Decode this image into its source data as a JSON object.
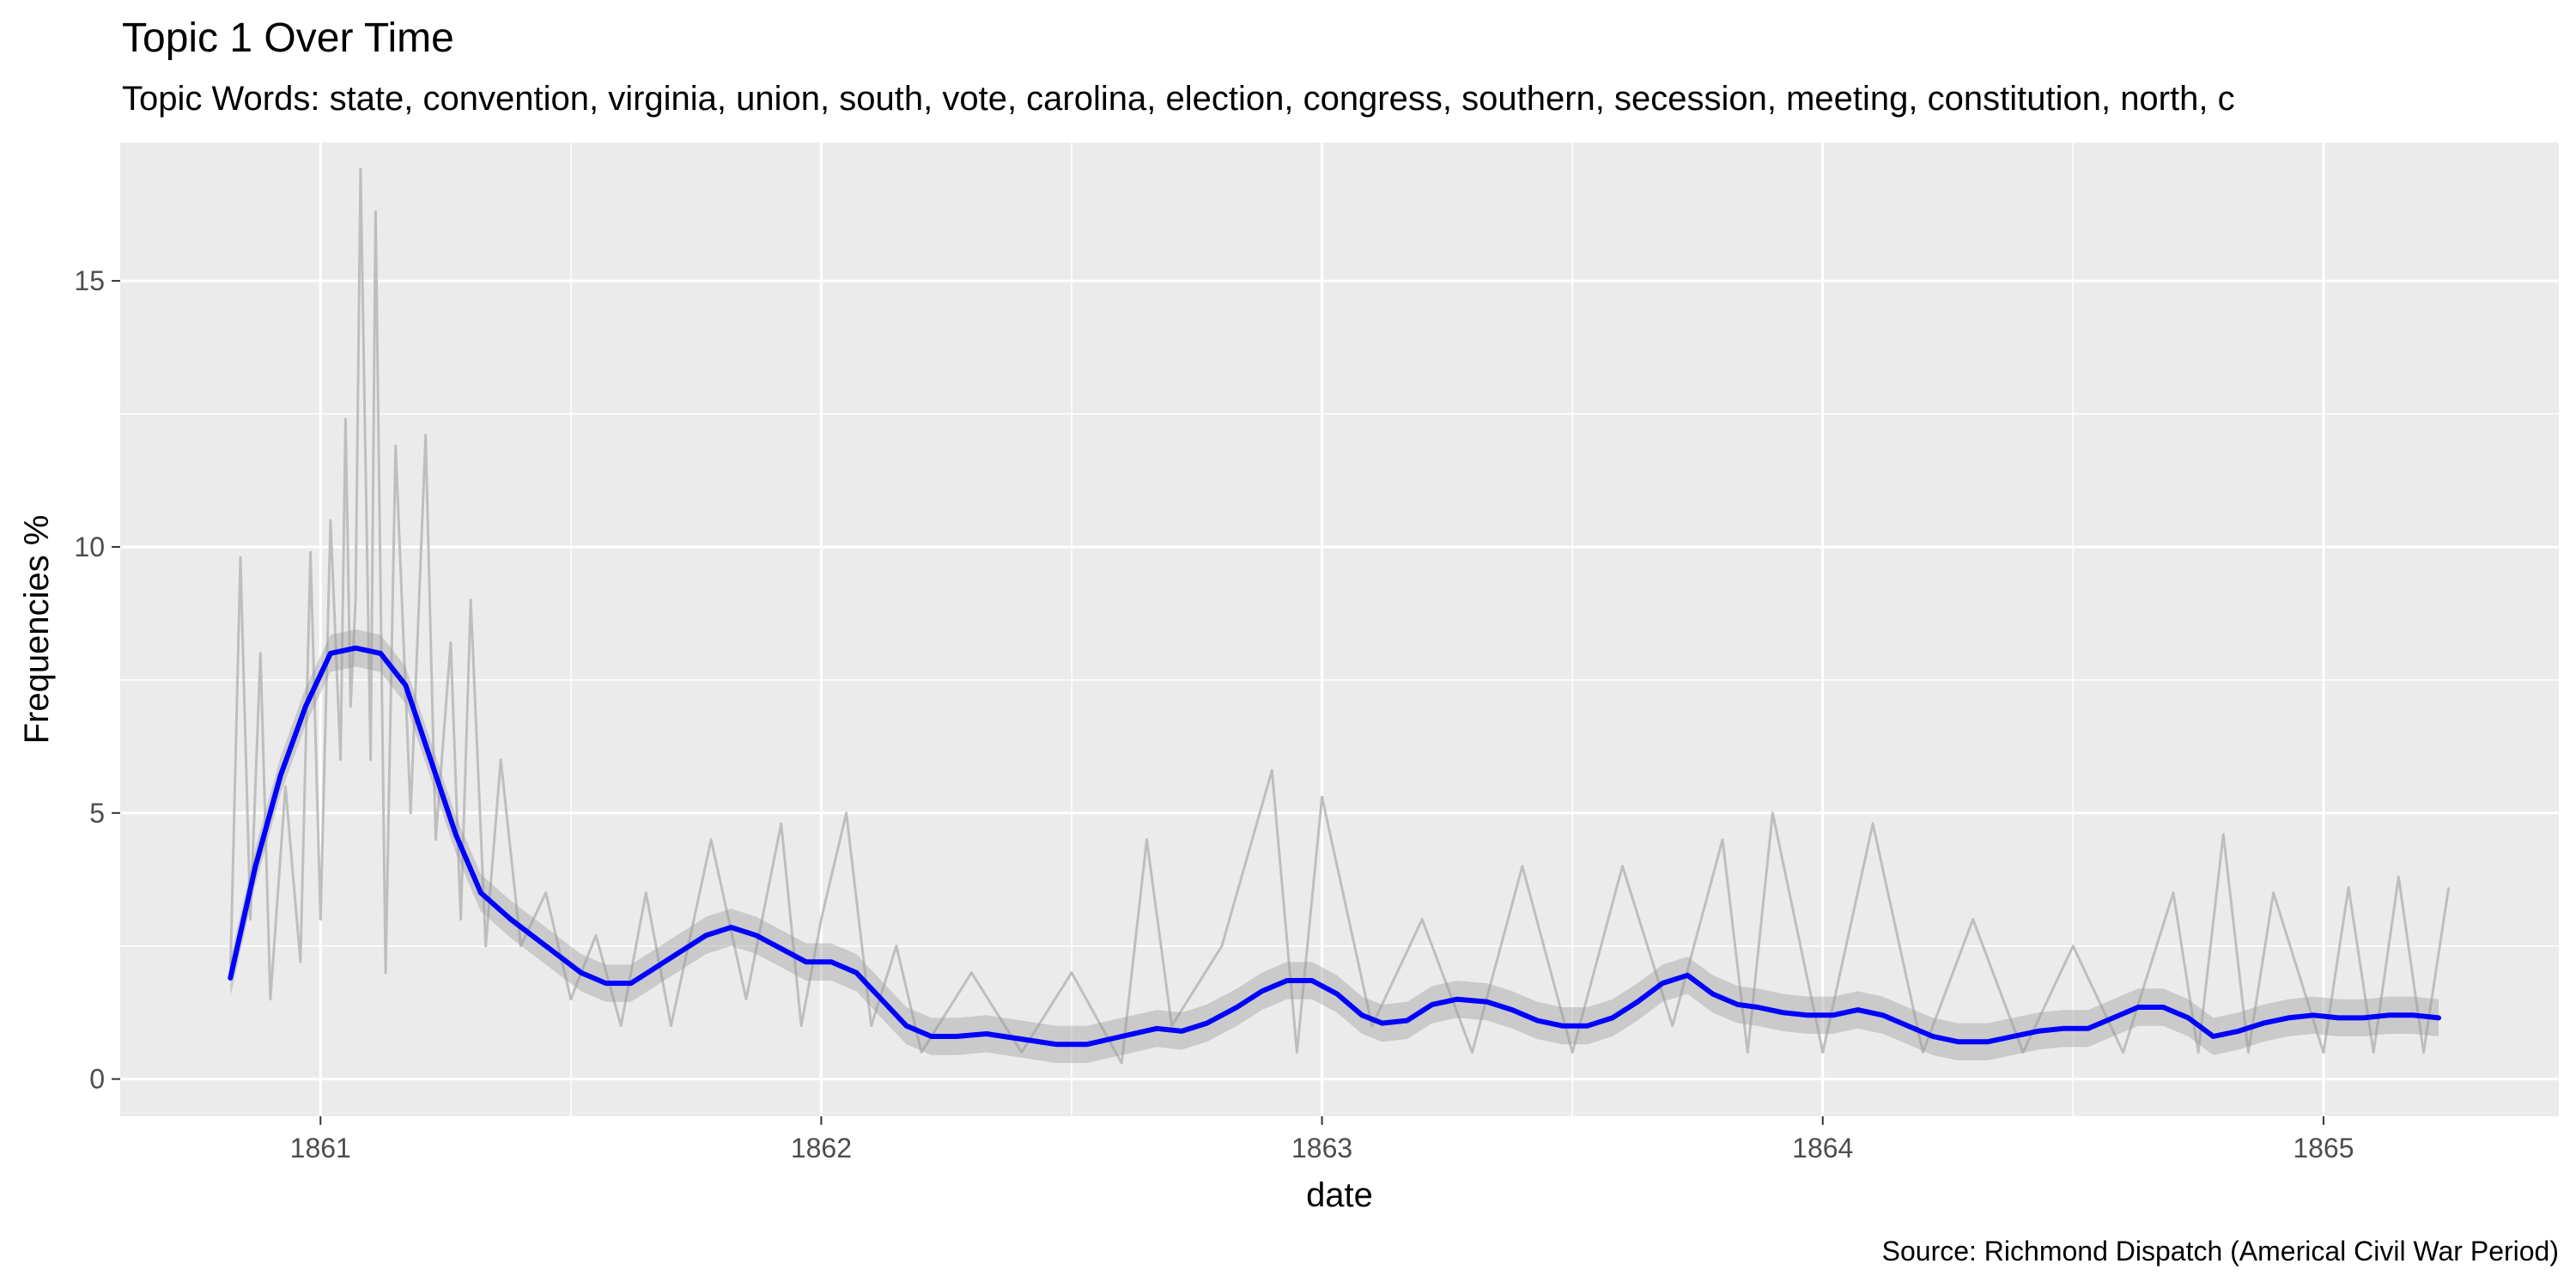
{
  "chart_data": {
    "type": "line",
    "title": "Topic 1 Over Time",
    "subtitle": "Topic Words: state, convention, virginia, union, south, vote, carolina, election, congress, southern, secession, meeting, constitution, north, c",
    "xlabel": "date",
    "ylabel": "Frequencies %",
    "caption": "Source: Richmond Dispatch (Americal Civil War Period)",
    "x_ticks": [
      "1861",
      "1862",
      "1863",
      "1864",
      "1865"
    ],
    "y_ticks": [
      "0",
      "5",
      "10",
      "15"
    ],
    "xlim": [
      1860.6,
      1865.47
    ],
    "ylim": [
      -0.7,
      17.6
    ],
    "grid": true,
    "colors": {
      "panel_background": "#ebebeb",
      "grid": "#ffffff",
      "raw_series": "#bebebe",
      "confidence_band": "#999999",
      "smooth_line": "#0000ff"
    },
    "series": [
      {
        "style": "raw",
        "x": [
          1860.82,
          1860.84,
          1860.86,
          1860.88,
          1860.9,
          1860.93,
          1860.96,
          1860.98,
          1861.0,
          1861.02,
          1861.04,
          1861.05,
          1861.06,
          1861.07,
          1861.08,
          1861.1,
          1861.11,
          1861.13,
          1861.15,
          1861.18,
          1861.21,
          1861.23,
          1861.26,
          1861.28,
          1861.3,
          1861.33,
          1861.36,
          1861.4,
          1861.45,
          1861.5,
          1861.55,
          1861.6,
          1861.65,
          1861.7,
          1861.78,
          1861.85,
          1861.92,
          1861.96,
          1862.0,
          1862.05,
          1862.1,
          1862.15,
          1862.2,
          1862.3,
          1862.4,
          1862.5,
          1862.6,
          1862.65,
          1862.7,
          1862.8,
          1862.9,
          1862.95,
          1863.0,
          1863.1,
          1863.2,
          1863.3,
          1863.4,
          1863.5,
          1863.6,
          1863.7,
          1863.8,
          1863.85,
          1863.9,
          1864.0,
          1864.1,
          1864.2,
          1864.3,
          1864.4,
          1864.5,
          1864.6,
          1864.7,
          1864.75,
          1864.8,
          1864.85,
          1864.9,
          1865.0,
          1865.05,
          1865.1,
          1865.15,
          1865.2,
          1865.25
        ],
        "values": [
          2.0,
          9.8,
          3.0,
          8.0,
          1.5,
          5.5,
          2.2,
          9.9,
          3.0,
          10.5,
          6.0,
          12.4,
          7.0,
          9.0,
          17.1,
          6.0,
          16.3,
          2.0,
          11.9,
          5.0,
          12.1,
          4.5,
          8.2,
          3.0,
          9.0,
          2.5,
          6.0,
          2.5,
          3.5,
          1.5,
          2.7,
          1.0,
          3.5,
          1.0,
          4.5,
          1.5,
          4.8,
          1.0,
          3.0,
          5.0,
          1.0,
          2.5,
          0.5,
          2.0,
          0.5,
          2.0,
          0.3,
          4.5,
          1.0,
          2.5,
          5.8,
          0.5,
          5.3,
          1.0,
          3.0,
          0.5,
          4.0,
          0.5,
          4.0,
          1.0,
          4.5,
          0.5,
          5.0,
          0.5,
          4.8,
          0.5,
          3.0,
          0.5,
          2.5,
          0.5,
          3.5,
          0.5,
          4.6,
          0.5,
          3.5,
          0.5,
          3.6,
          0.5,
          3.8,
          0.5,
          3.6
        ]
      },
      {
        "style": "smooth",
        "x": [
          1860.82,
          1860.87,
          1860.92,
          1860.97,
          1861.02,
          1861.07,
          1861.12,
          1861.17,
          1861.22,
          1861.27,
          1861.32,
          1861.38,
          1861.45,
          1861.52,
          1861.57,
          1861.62,
          1861.67,
          1861.72,
          1861.77,
          1861.82,
          1861.87,
          1861.92,
          1861.97,
          1862.02,
          1862.07,
          1862.12,
          1862.17,
          1862.22,
          1862.27,
          1862.33,
          1862.4,
          1862.47,
          1862.53,
          1862.6,
          1862.67,
          1862.72,
          1862.77,
          1862.83,
          1862.88,
          1862.93,
          1862.98,
          1863.03,
          1863.08,
          1863.12,
          1863.17,
          1863.22,
          1863.27,
          1863.33,
          1863.38,
          1863.43,
          1863.48,
          1863.53,
          1863.58,
          1863.63,
          1863.68,
          1863.73,
          1863.78,
          1863.83,
          1863.87,
          1863.92,
          1863.97,
          1864.02,
          1864.07,
          1864.12,
          1864.17,
          1864.22,
          1864.27,
          1864.33,
          1864.38,
          1864.43,
          1864.48,
          1864.53,
          1864.58,
          1864.63,
          1864.68,
          1864.73,
          1864.78,
          1864.83,
          1864.88,
          1864.93,
          1864.98,
          1865.03,
          1865.08,
          1865.13,
          1865.18,
          1865.23
        ],
        "values": [
          1.9,
          4.0,
          5.7,
          7.0,
          8.0,
          8.1,
          8.0,
          7.4,
          6.0,
          4.6,
          3.5,
          3.0,
          2.5,
          2.0,
          1.8,
          1.8,
          2.1,
          2.4,
          2.7,
          2.85,
          2.7,
          2.45,
          2.2,
          2.2,
          2.0,
          1.5,
          1.0,
          0.8,
          0.8,
          0.85,
          0.75,
          0.65,
          0.65,
          0.8,
          0.95,
          0.9,
          1.05,
          1.35,
          1.65,
          1.85,
          1.85,
          1.6,
          1.2,
          1.05,
          1.1,
          1.4,
          1.5,
          1.45,
          1.3,
          1.1,
          1.0,
          1.0,
          1.15,
          1.45,
          1.8,
          1.95,
          1.6,
          1.4,
          1.35,
          1.25,
          1.2,
          1.2,
          1.3,
          1.2,
          1.0,
          0.8,
          0.7,
          0.7,
          0.8,
          0.9,
          0.95,
          0.95,
          1.15,
          1.35,
          1.35,
          1.15,
          0.8,
          0.9,
          1.05,
          1.15,
          1.2,
          1.15,
          1.15,
          1.2,
          1.2,
          1.15
        ]
      }
    ]
  }
}
